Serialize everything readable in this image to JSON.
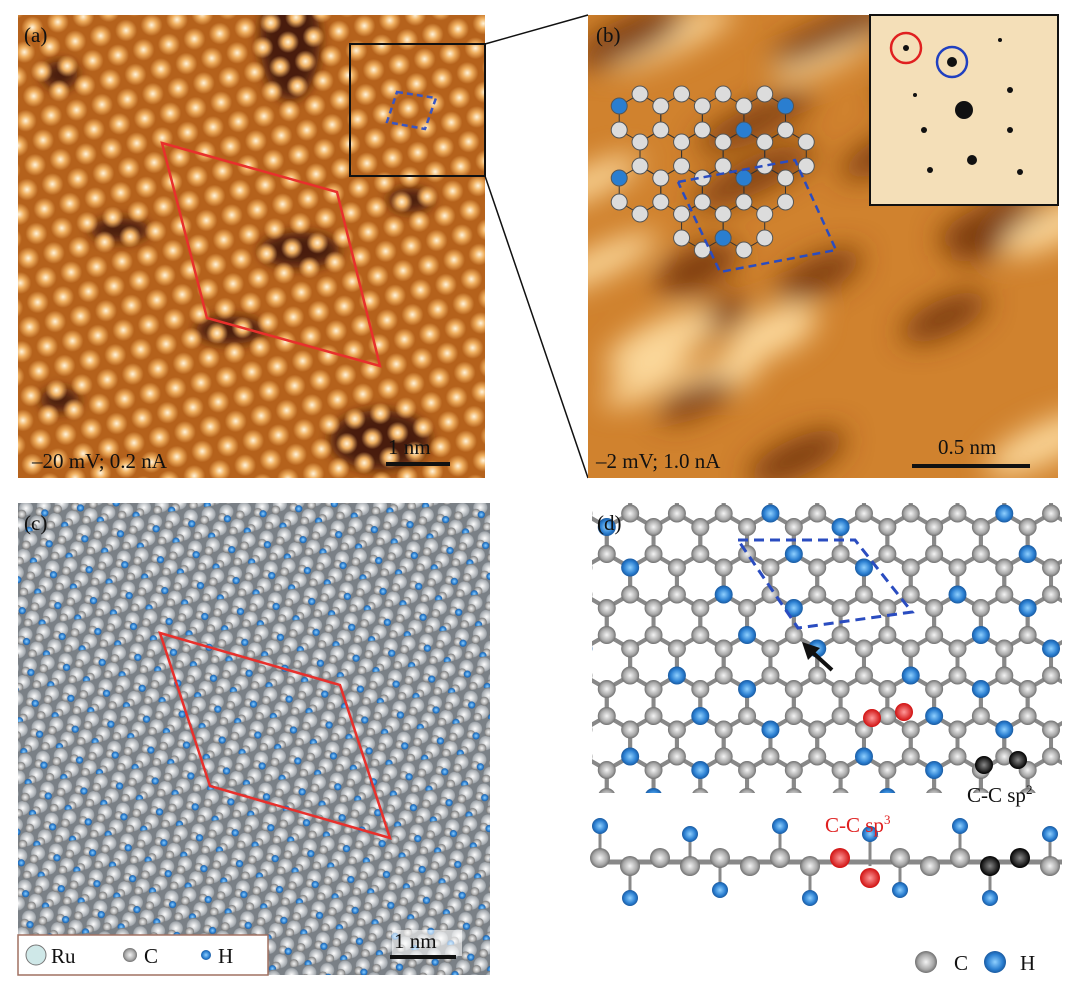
{
  "panels": [
    {
      "label": "(a)",
      "caption": "–20 mV; 0.2 nA",
      "scalebar": "1 nm"
    },
    {
      "label": "(b)",
      "caption": "–2 mV; 1.0 nA",
      "scalebar": "0.5 nm"
    },
    {
      "label": "(c)",
      "scalebar": "1 nm",
      "legend": [
        "Ru",
        "C",
        "H"
      ]
    },
    {
      "label": "(d)",
      "sp3": {
        "text": "C-C sp",
        "sup": "3"
      },
      "sp2": {
        "text": "C-C sp",
        "sup": "2"
      },
      "legend": [
        "C",
        "H"
      ]
    }
  ]
}
